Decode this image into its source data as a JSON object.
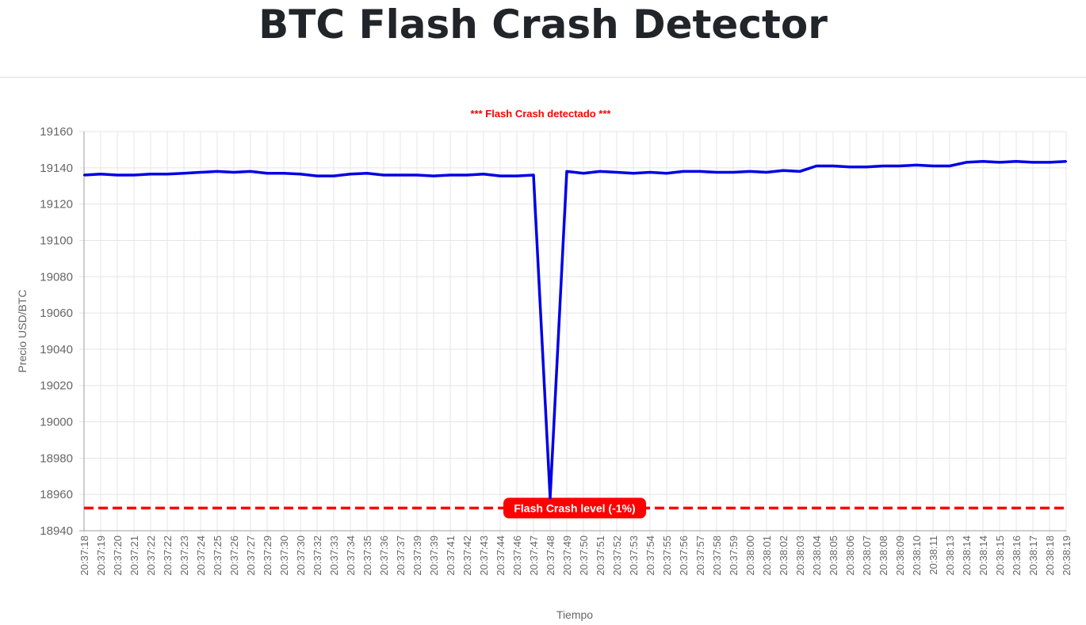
{
  "page": {
    "title": "BTC Flash Crash Detector"
  },
  "colors": {
    "line": "#0000e6",
    "crash": "#ff0000",
    "grid": "#e5e5e5",
    "axis": "#9e9e9e",
    "text": "#666666"
  },
  "chart_data": {
    "type": "line",
    "title": "*** Flash Crash detectado ***",
    "xlabel": "Tiempo",
    "ylabel": "Precio USD/BTC",
    "ylim": [
      18940,
      19160
    ],
    "yticks": [
      18940,
      18960,
      18980,
      19000,
      19020,
      19040,
      19060,
      19080,
      19100,
      19120,
      19140,
      19160
    ],
    "grid": true,
    "categories": [
      "20:37:18",
      "20:37:19",
      "20:37:20",
      "20:37:21",
      "20:37:22",
      "20:37:22",
      "20:37:23",
      "20:37:24",
      "20:37:25",
      "20:37:26",
      "20:37:27",
      "20:37:29",
      "20:37:30",
      "20:37:30",
      "20:37:32",
      "20:37:33",
      "20:37:34",
      "20:37:35",
      "20:37:36",
      "20:37:37",
      "20:37:39",
      "20:37:39",
      "20:37:41",
      "20:37:42",
      "20:37:43",
      "20:37:44",
      "20:37:46",
      "20:37:47",
      "20:37:48",
      "20:37:49",
      "20:37:50",
      "20:37:51",
      "20:37:52",
      "20:37:53",
      "20:37:54",
      "20:37:55",
      "20:37:56",
      "20:37:57",
      "20:37:58",
      "20:37:59",
      "20:38:00",
      "20:38:01",
      "20:38:02",
      "20:38:03",
      "20:38:04",
      "20:38:05",
      "20:38:06",
      "20:38:07",
      "20:38:08",
      "20:38:09",
      "20:38:10",
      "20:38:11",
      "20:38:13",
      "20:38:14",
      "20:38:14",
      "20:38:15",
      "20:38:16",
      "20:38:17",
      "20:38:18",
      "20:38:19"
    ],
    "series": [
      {
        "values": [
          19136,
          19136.5,
          19136,
          19136,
          19136.5,
          19136.5,
          19137,
          19137.5,
          19138,
          19137.5,
          19138,
          19137,
          19137,
          19136.5,
          19135.5,
          19135.5,
          19136.5,
          19137,
          19136,
          19136,
          19136,
          19135.5,
          19136,
          19136,
          19136.5,
          19135.5,
          19135.5,
          19136,
          18958,
          19138,
          19137,
          19138,
          19137.5,
          19137,
          19137.5,
          19137,
          19138,
          19138,
          19137.5,
          19137.5,
          19138,
          19137.5,
          19138.5,
          19138,
          19141,
          19141,
          19140.5,
          19140.5,
          19141,
          19141,
          19141.5,
          19141,
          19141,
          19143,
          19143.5,
          19143,
          19143.5,
          19143,
          19143,
          19143.5
        ]
      }
    ],
    "threshold": {
      "value": 18952.5,
      "label": "Flash Crash level (-1%)"
    }
  }
}
